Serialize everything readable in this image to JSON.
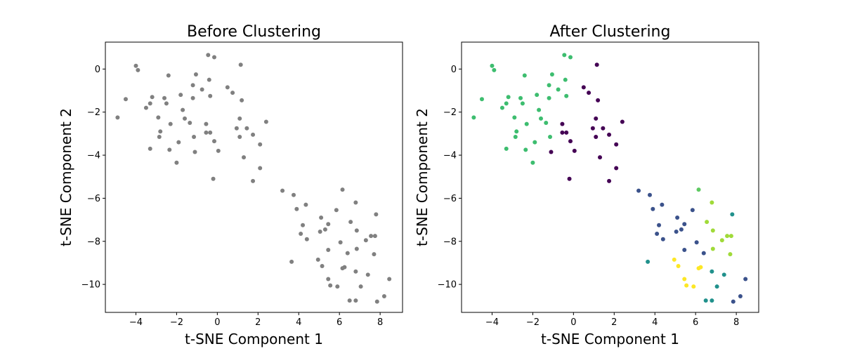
{
  "chart_data": [
    {
      "type": "scatter",
      "title": "Before Clustering",
      "xlabel": "t-SNE Component 1",
      "ylabel": "t-SNE Component 2",
      "xlim": [
        -5.5,
        9.1
      ],
      "ylim": [
        -11.3,
        1.25
      ],
      "xticks": [
        -4,
        -2,
        0,
        2,
        4,
        6,
        8
      ],
      "yticks": [
        0,
        -2,
        -4,
        -6,
        -8,
        -10
      ],
      "grid": false,
      "point_color": "#808080",
      "cluster_colors": [],
      "points": [
        [
          -0.45,
          0.65,
          1
        ],
        [
          -0.15,
          0.55,
          1
        ],
        [
          -4.0,
          0.15,
          1
        ],
        [
          -3.9,
          -0.05,
          1
        ],
        [
          1.15,
          0.2,
          1
        ],
        [
          -2.4,
          -0.3,
          1
        ],
        [
          -1.05,
          -0.25,
          1
        ],
        [
          -0.4,
          -0.5,
          1
        ],
        [
          -1.2,
          -0.75,
          1
        ],
        [
          -0.75,
          -0.95,
          1
        ],
        [
          0.5,
          -0.85,
          1
        ],
        [
          0.75,
          -1.1,
          1
        ],
        [
          -4.9,
          -2.25,
          1
        ],
        [
          -4.5,
          -1.4,
          1
        ],
        [
          -3.5,
          -1.8,
          1
        ],
        [
          -3.2,
          -1.3,
          1
        ],
        [
          -3.3,
          -1.6,
          1
        ],
        [
          -2.6,
          -1.35,
          1
        ],
        [
          -1.8,
          -1.2,
          1
        ],
        [
          -1.2,
          -1.35,
          1
        ],
        [
          -0.35,
          -1.25,
          1
        ],
        [
          1.2,
          -1.45,
          1
        ],
        [
          -2.5,
          -1.6,
          1
        ],
        [
          -1.7,
          -1.9,
          1
        ],
        [
          -2.3,
          -2.55,
          1
        ],
        [
          -2.9,
          -2.25,
          1
        ],
        [
          -1.6,
          -2.3,
          1
        ],
        [
          -1.35,
          -2.5,
          1
        ],
        [
          -2.8,
          -2.9,
          1
        ],
        [
          -2.85,
          -3.15,
          1
        ],
        [
          -1.9,
          -3.4,
          1
        ],
        [
          -1.15,
          -3.15,
          1
        ],
        [
          -0.55,
          -2.55,
          1
        ],
        [
          -0.55,
          -2.95,
          1
        ],
        [
          -0.35,
          -2.95,
          1
        ],
        [
          -0.15,
          -3.35,
          1
        ],
        [
          0.05,
          -3.8,
          1
        ],
        [
          -3.3,
          -3.7,
          1
        ],
        [
          -2.35,
          -3.75,
          1
        ],
        [
          -2.0,
          -4.35,
          1
        ],
        [
          -1.1,
          -3.85,
          1
        ],
        [
          0.95,
          -2.75,
          1
        ],
        [
          1.1,
          -2.3,
          1
        ],
        [
          1.45,
          -2.75,
          1
        ],
        [
          1.75,
          -3.05,
          1
        ],
        [
          1.1,
          -3.15,
          1
        ],
        [
          2.1,
          -3.5,
          1
        ],
        [
          2.4,
          -2.45,
          1
        ],
        [
          1.3,
          -4.1,
          1
        ],
        [
          2.1,
          -4.6,
          1
        ],
        [
          1.75,
          -5.2,
          1
        ],
        [
          -0.2,
          -5.1,
          1
        ],
        [
          3.2,
          -5.65,
          1
        ],
        [
          3.75,
          -5.85,
          1
        ],
        [
          4.35,
          -6.3,
          1
        ],
        [
          3.9,
          -6.5,
          1
        ],
        [
          4.2,
          -7.25,
          1
        ],
        [
          4.1,
          -7.65,
          1
        ],
        [
          4.4,
          -7.9,
          1
        ],
        [
          3.65,
          -8.95,
          1
        ],
        [
          5.1,
          -6.9,
          1
        ],
        [
          5.45,
          -7.2,
          1
        ],
        [
          5.3,
          -7.45,
          1
        ],
        [
          5.05,
          -7.55,
          1
        ],
        [
          5.85,
          -6.55,
          1
        ],
        [
          6.15,
          -5.6,
          1
        ],
        [
          6.8,
          -6.2,
          1
        ],
        [
          6.55,
          -7.1,
          1
        ],
        [
          6.85,
          -7.5,
          1
        ],
        [
          7.8,
          -6.75,
          1
        ],
        [
          7.3,
          -7.95,
          1
        ],
        [
          7.55,
          -7.75,
          1
        ],
        [
          7.75,
          -7.75,
          1
        ],
        [
          6.05,
          -8.05,
          1
        ],
        [
          5.45,
          -8.4,
          1
        ],
        [
          6.4,
          -8.55,
          1
        ],
        [
          6.85,
          -8.35,
          1
        ],
        [
          7.7,
          -8.6,
          1
        ],
        [
          4.95,
          -8.85,
          1
        ],
        [
          5.15,
          -9.15,
          1
        ],
        [
          6.15,
          -9.25,
          1
        ],
        [
          6.25,
          -9.2,
          1
        ],
        [
          6.8,
          -9.4,
          1
        ],
        [
          7.4,
          -9.55,
          1
        ],
        [
          5.45,
          -9.75,
          1
        ],
        [
          5.55,
          -10.05,
          1
        ],
        [
          5.9,
          -10.1,
          1
        ],
        [
          7.05,
          -10.1,
          1
        ],
        [
          8.45,
          -9.75,
          1
        ],
        [
          6.5,
          -10.75,
          1
        ],
        [
          6.8,
          -10.75,
          1
        ],
        [
          7.85,
          -10.8,
          1
        ],
        [
          8.2,
          -10.55,
          1
        ]
      ]
    },
    {
      "type": "scatter",
      "title": "After Clustering",
      "xlabel": "t-SNE Component 1",
      "ylabel": "t-SNE Component 2",
      "xlim": [
        -5.5,
        9.1
      ],
      "ylim": [
        -11.3,
        1.25
      ],
      "xticks": [
        -4,
        -2,
        0,
        2,
        4,
        6,
        8
      ],
      "yticks": [
        0,
        -2,
        -4,
        -6,
        -8,
        -10
      ],
      "grid": false,
      "point_color": "",
      "cluster_colors": [
        "#440154",
        "#3b528b",
        "#21918c",
        "#5ec962",
        "#3dbd6f",
        "#a0da39",
        "#fde725"
      ],
      "points": [
        [
          -0.45,
          0.65,
          4
        ],
        [
          -0.15,
          0.55,
          4
        ],
        [
          -4.0,
          0.15,
          4
        ],
        [
          -3.9,
          -0.05,
          4
        ],
        [
          1.15,
          0.2,
          0
        ],
        [
          -2.4,
          -0.3,
          4
        ],
        [
          -1.05,
          -0.25,
          4
        ],
        [
          -0.4,
          -0.5,
          4
        ],
        [
          -1.2,
          -0.75,
          4
        ],
        [
          -0.75,
          -0.95,
          4
        ],
        [
          0.5,
          -0.85,
          0
        ],
        [
          0.75,
          -1.1,
          0
        ],
        [
          -4.9,
          -2.25,
          4
        ],
        [
          -4.5,
          -1.4,
          4
        ],
        [
          -3.5,
          -1.8,
          4
        ],
        [
          -3.2,
          -1.3,
          4
        ],
        [
          -3.3,
          -1.6,
          4
        ],
        [
          -2.6,
          -1.35,
          4
        ],
        [
          -1.8,
          -1.2,
          4
        ],
        [
          -1.2,
          -1.35,
          4
        ],
        [
          -0.35,
          -1.25,
          4
        ],
        [
          1.2,
          -1.45,
          0
        ],
        [
          -2.5,
          -1.6,
          4
        ],
        [
          -1.7,
          -1.9,
          4
        ],
        [
          -2.3,
          -2.55,
          4
        ],
        [
          -2.9,
          -2.25,
          4
        ],
        [
          -1.6,
          -2.3,
          4
        ],
        [
          -1.35,
          -2.5,
          4
        ],
        [
          -2.8,
          -2.9,
          4
        ],
        [
          -2.85,
          -3.15,
          4
        ],
        [
          -1.9,
          -3.4,
          4
        ],
        [
          -1.15,
          -3.15,
          4
        ],
        [
          -0.55,
          -2.55,
          0
        ],
        [
          -0.55,
          -2.95,
          0
        ],
        [
          -0.35,
          -2.95,
          0
        ],
        [
          -0.15,
          -3.35,
          0
        ],
        [
          0.05,
          -3.8,
          0
        ],
        [
          -3.3,
          -3.7,
          4
        ],
        [
          -2.35,
          -3.75,
          4
        ],
        [
          -2.0,
          -4.35,
          4
        ],
        [
          -1.1,
          -3.85,
          0
        ],
        [
          0.95,
          -2.75,
          0
        ],
        [
          1.1,
          -2.3,
          0
        ],
        [
          1.45,
          -2.75,
          0
        ],
        [
          1.75,
          -3.05,
          0
        ],
        [
          1.1,
          -3.15,
          0
        ],
        [
          2.1,
          -3.5,
          0
        ],
        [
          2.4,
          -2.45,
          0
        ],
        [
          1.3,
          -4.1,
          0
        ],
        [
          2.1,
          -4.6,
          0
        ],
        [
          1.75,
          -5.2,
          0
        ],
        [
          -0.2,
          -5.1,
          0
        ],
        [
          3.2,
          -5.65,
          1
        ],
        [
          3.75,
          -5.85,
          1
        ],
        [
          4.35,
          -6.3,
          1
        ],
        [
          3.9,
          -6.5,
          1
        ],
        [
          4.2,
          -7.25,
          1
        ],
        [
          4.1,
          -7.65,
          1
        ],
        [
          4.4,
          -7.9,
          1
        ],
        [
          3.65,
          -8.95,
          2
        ],
        [
          5.1,
          -6.9,
          1
        ],
        [
          5.45,
          -7.2,
          1
        ],
        [
          5.3,
          -7.45,
          1
        ],
        [
          5.05,
          -7.55,
          1
        ],
        [
          5.85,
          -6.55,
          1
        ],
        [
          6.15,
          -5.6,
          3
        ],
        [
          6.8,
          -6.2,
          5
        ],
        [
          6.55,
          -7.1,
          5
        ],
        [
          6.85,
          -7.5,
          5
        ],
        [
          7.8,
          -6.75,
          2
        ],
        [
          7.3,
          -7.95,
          5
        ],
        [
          7.55,
          -7.75,
          5
        ],
        [
          7.75,
          -7.75,
          5
        ],
        [
          6.05,
          -8.05,
          1
        ],
        [
          5.45,
          -8.4,
          1
        ],
        [
          6.4,
          -8.55,
          1
        ],
        [
          6.85,
          -8.35,
          5
        ],
        [
          7.7,
          -8.6,
          5
        ],
        [
          4.95,
          -8.85,
          6
        ],
        [
          5.15,
          -9.15,
          6
        ],
        [
          6.15,
          -9.25,
          6
        ],
        [
          6.25,
          -9.2,
          6
        ],
        [
          6.8,
          -9.4,
          2
        ],
        [
          7.4,
          -9.55,
          2
        ],
        [
          5.45,
          -9.75,
          6
        ],
        [
          5.55,
          -10.05,
          6
        ],
        [
          5.9,
          -10.1,
          6
        ],
        [
          7.05,
          -10.1,
          2
        ],
        [
          8.45,
          -9.75,
          1
        ],
        [
          6.5,
          -10.75,
          2
        ],
        [
          6.8,
          -10.75,
          2
        ],
        [
          7.85,
          -10.8,
          1
        ],
        [
          8.2,
          -10.55,
          1
        ]
      ]
    }
  ]
}
